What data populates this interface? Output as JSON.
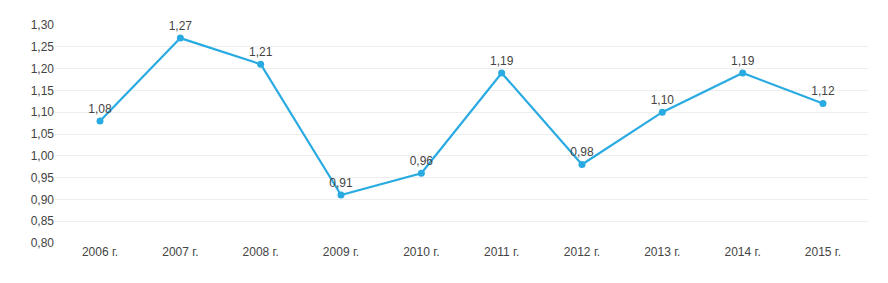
{
  "chart_data": {
    "type": "line",
    "categories": [
      "2006 г.",
      "2007 г.",
      "2008 г.",
      "2009 г.",
      "2010 г.",
      "2011 г.",
      "2012 г.",
      "2013 г.",
      "2014 г.",
      "2015 г."
    ],
    "values": [
      1.08,
      1.27,
      1.21,
      0.91,
      0.96,
      1.19,
      0.98,
      1.1,
      1.19,
      1.12
    ],
    "value_labels": [
      "1,08",
      "1,27",
      "1,21",
      "0,91",
      "0,96",
      "1,19",
      "0,98",
      "1,10",
      "1,19",
      "1,12"
    ],
    "color": "#29ABE2",
    "marker": "circle",
    "data_labels": true,
    "grid": true,
    "ylim": [
      0.8,
      1.3
    ],
    "yticks": [
      {
        "value": 0.8,
        "label": "0,80"
      },
      {
        "value": 0.85,
        "label": "0,85"
      },
      {
        "value": 0.9,
        "label": "0,90"
      },
      {
        "value": 0.95,
        "label": "0,95"
      },
      {
        "value": 1.0,
        "label": "1,00"
      },
      {
        "value": 1.05,
        "label": "1,05"
      },
      {
        "value": 1.1,
        "label": "1,10"
      },
      {
        "value": 1.15,
        "label": "1,15"
      },
      {
        "value": 1.2,
        "label": "1,20"
      },
      {
        "value": 1.25,
        "label": "1,25"
      },
      {
        "value": 1.3,
        "label": "1,30"
      }
    ]
  }
}
